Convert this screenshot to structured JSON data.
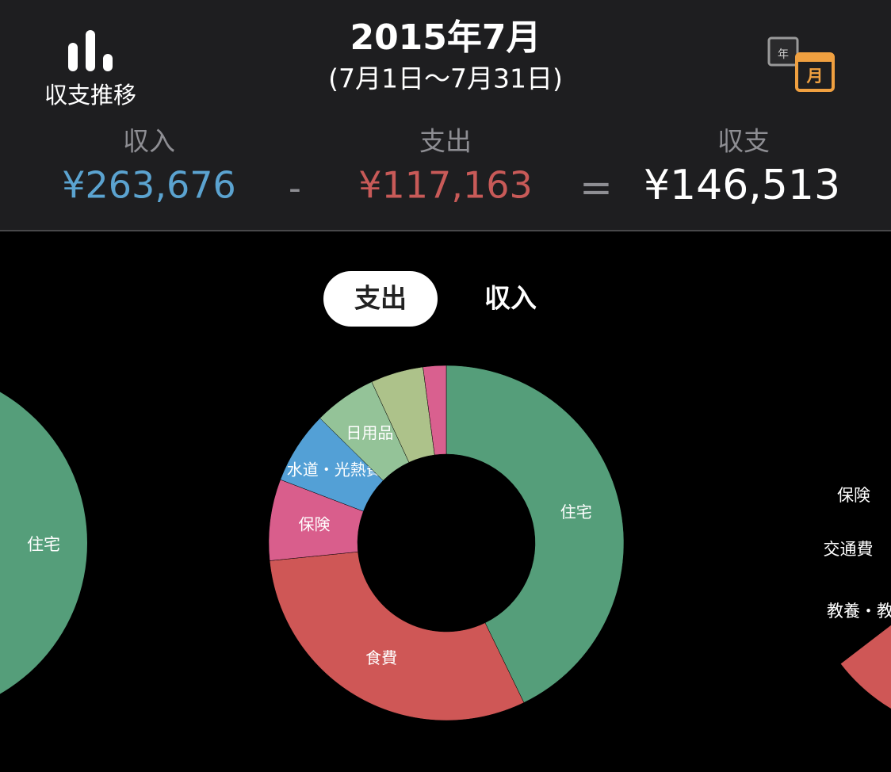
{
  "header": {
    "trend_label": "収支推移",
    "title": "2015年7月",
    "period": "(7月1日〜7月31日)",
    "calendar_year": "年",
    "calendar_month": "月"
  },
  "summary": {
    "income_label": "収入",
    "income": "¥263,676",
    "minus": "-",
    "expense_label": "支出",
    "expense": "¥117,163",
    "equals": "=",
    "balance_label": "収支",
    "balance": "¥146,513"
  },
  "tabs": [
    "支出",
    "収入"
  ],
  "chart_data": {
    "type": "donut",
    "categories": [
      "住宅",
      "食費",
      "保険",
      "水道・光熱費",
      "日用品",
      null,
      null
    ],
    "values": [
      42.8,
      30.6,
      7.4,
      6.6,
      5.7,
      4.8,
      2.1
    ],
    "colors": [
      "#559e7a",
      "#cf5756",
      "#d95e8c",
      "#53a0d6",
      "#94c398",
      "#adc28a",
      "#d9608f"
    ]
  },
  "side_charts": {
    "left_labels": [
      "住宅"
    ],
    "right_labels": [
      "保険",
      "交通費",
      "教養・教"
    ]
  }
}
